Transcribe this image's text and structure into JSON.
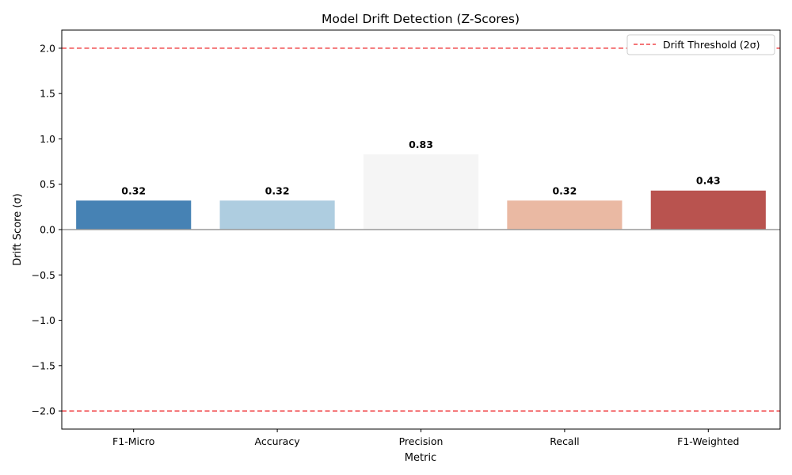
{
  "chart_data": {
    "type": "bar",
    "title": "Model Drift Detection (Z-Scores)",
    "xlabel": "Metric",
    "ylabel": "Drift Score (σ)",
    "categories": [
      "F1-Micro",
      "Accuracy",
      "Precision",
      "Recall",
      "F1-Weighted"
    ],
    "values": [
      0.32,
      0.32,
      0.83,
      0.32,
      0.43
    ],
    "value_labels": [
      "0.32",
      "0.32",
      "0.83",
      "0.32",
      "0.43"
    ],
    "bar_colors": [
      "#4682b4",
      "#aecde0",
      "#f5f5f5",
      "#eab9a3",
      "#b9534f"
    ],
    "ylim": [
      -2.2,
      2.2
    ],
    "yticks": [
      -2.0,
      -1.5,
      -1.0,
      -0.5,
      0.0,
      0.5,
      1.0,
      1.5,
      2.0
    ],
    "ytick_labels": [
      "−2.0",
      "−1.5",
      "−1.0",
      "−0.5",
      "0.0",
      "0.5",
      "1.0",
      "1.5",
      "2.0"
    ],
    "threshold": {
      "label": "Drift Threshold (2σ)",
      "upper": 2.0,
      "lower": -2.0,
      "color": "#f0474a",
      "style": "dashed"
    },
    "baseline": {
      "value": 0.0,
      "color": "#999999"
    },
    "legend_position": "top-right",
    "grid": false
  }
}
